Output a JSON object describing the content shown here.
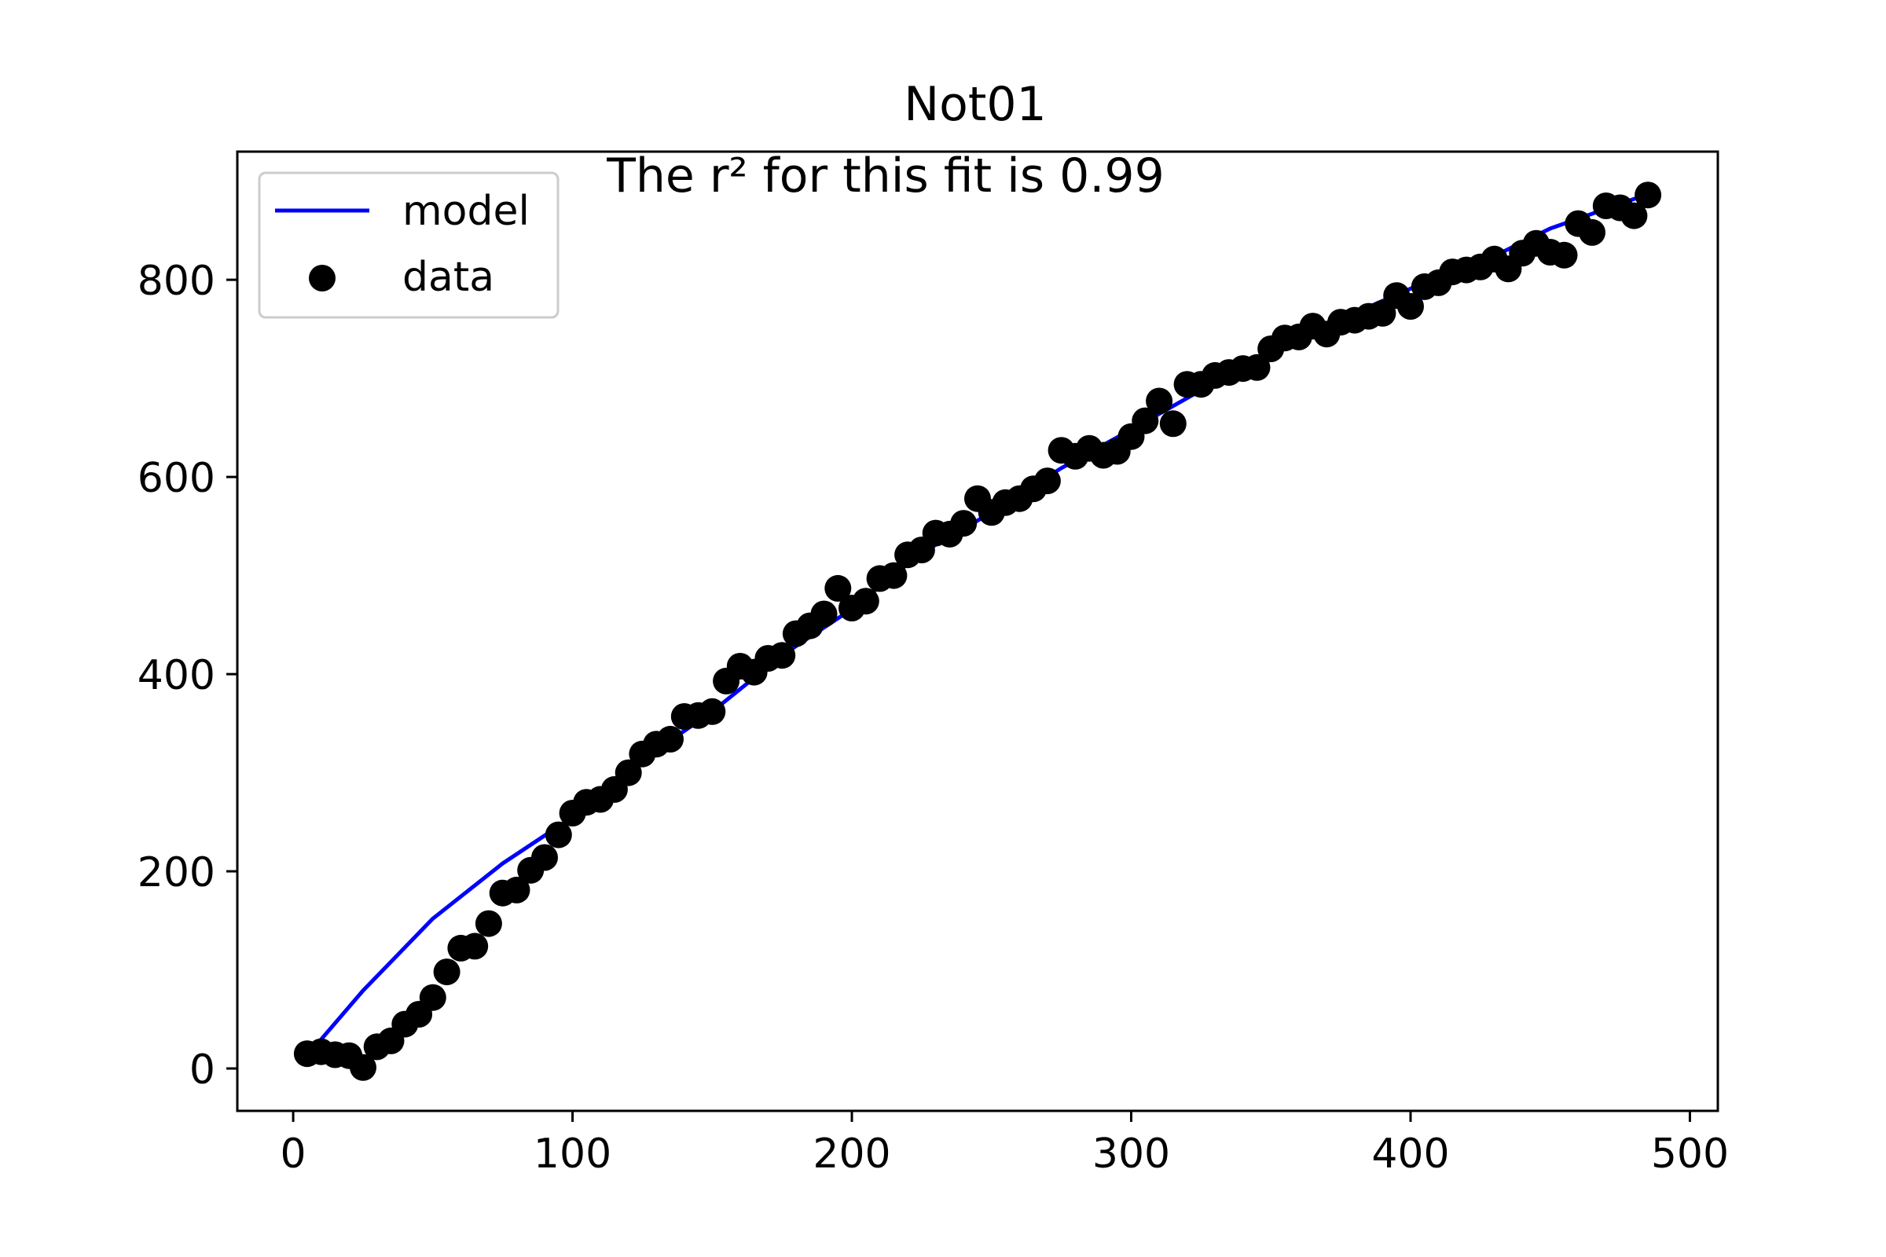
{
  "chart_data": {
    "type": "scatter",
    "title": "Not01",
    "annotation": "The r² for this fit is 0.99",
    "xlim": [
      -20,
      510
    ],
    "ylim": [
      -43,
      930
    ],
    "xticks": [
      0,
      100,
      200,
      300,
      400,
      500
    ],
    "yticks": [
      0,
      200,
      400,
      600,
      800
    ],
    "grid": false,
    "legend": {
      "position": "top-left",
      "entries": [
        {
          "label": "model",
          "kind": "line",
          "color": "#0000ff"
        },
        {
          "label": "data",
          "kind": "marker",
          "color": "#000000"
        }
      ]
    },
    "series": [
      {
        "name": "model",
        "kind": "line",
        "color": "#0000ff",
        "x": [
          5,
          25,
          50,
          75,
          100,
          125,
          150,
          175,
          200,
          225,
          250,
          275,
          300,
          325,
          350,
          375,
          400,
          425,
          450,
          485
        ],
        "y": [
          13,
          79,
          152,
          208,
          255,
          313,
          362,
          419,
          466,
          523,
          564,
          609,
          648,
          688,
          727,
          760,
          791,
          817,
          852,
          887
        ]
      },
      {
        "name": "data",
        "kind": "scatter",
        "color": "#000000",
        "x": [
          5,
          10,
          15,
          20,
          25,
          30,
          35,
          40,
          45,
          50,
          55,
          60,
          65,
          70,
          75,
          80,
          85,
          90,
          95,
          100,
          105,
          110,
          115,
          120,
          125,
          130,
          135,
          140,
          145,
          150,
          155,
          160,
          165,
          170,
          175,
          180,
          185,
          190,
          195,
          200,
          205,
          210,
          215,
          220,
          225,
          230,
          235,
          240,
          245,
          250,
          255,
          260,
          265,
          270,
          275,
          280,
          285,
          290,
          295,
          300,
          305,
          310,
          315,
          320,
          325,
          330,
          335,
          340,
          345,
          350,
          355,
          360,
          365,
          370,
          375,
          380,
          385,
          390,
          395,
          400,
          405,
          410,
          415,
          420,
          425,
          430,
          435,
          440,
          445,
          450,
          455,
          460,
          465,
          470,
          475,
          480,
          485
        ],
        "y": [
          15,
          17,
          14,
          13,
          1,
          22,
          28,
          45,
          55,
          72,
          98,
          122,
          124,
          147,
          178,
          181,
          201,
          214,
          237,
          259,
          270,
          273,
          283,
          300,
          319,
          329,
          334,
          357,
          358,
          362,
          393,
          408,
          402,
          416,
          419,
          441,
          449,
          461,
          487,
          467,
          474,
          497,
          500,
          521,
          526,
          543,
          542,
          553,
          578,
          564,
          574,
          578,
          588,
          596,
          627,
          621,
          629,
          622,
          626,
          641,
          657,
          677,
          654,
          694,
          694,
          703,
          706,
          710,
          711,
          730,
          741,
          742,
          753,
          745,
          757,
          759,
          763,
          766,
          784,
          773,
          793,
          797,
          808,
          810,
          813,
          821,
          811,
          827,
          837,
          828,
          825,
          857,
          848,
          875,
          873,
          865,
          886
        ]
      }
    ]
  }
}
